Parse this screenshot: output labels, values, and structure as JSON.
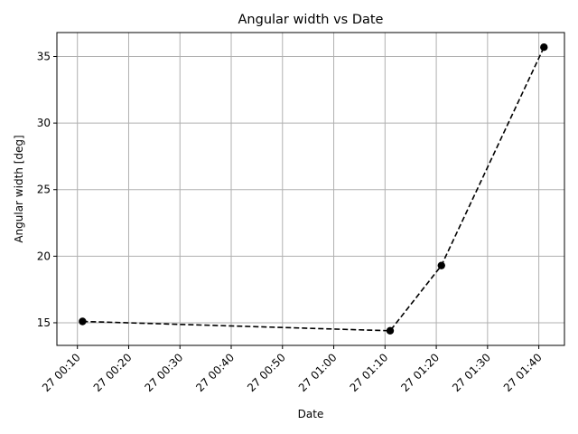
{
  "chart_data": {
    "type": "line",
    "title": "Angular width vs Date",
    "xlabel": "Date",
    "ylabel": "Angular width [deg]",
    "x_tick_labels": [
      "27 00:10",
      "27 00:20",
      "27 00:30",
      "27 00:40",
      "27 00:50",
      "27 01:00",
      "27 01:10",
      "27 01:20",
      "27 01:30",
      "27 01:40"
    ],
    "y_tick_labels": [
      "15",
      "20",
      "25",
      "30",
      "35"
    ],
    "y_ticks": [
      15,
      20,
      25,
      30,
      35
    ],
    "x_ticks": [
      "00:10",
      "00:20",
      "00:30",
      "00:40",
      "00:50",
      "01:00",
      "01:10",
      "01:20",
      "01:30",
      "01:40"
    ],
    "xlim": [
      "00:06",
      "01:45"
    ],
    "ylim": [
      13.3,
      36.8
    ],
    "grid": true,
    "line_style": "dashed",
    "marker": "circle",
    "series": [
      {
        "color": "#000000",
        "points": [
          {
            "x": "00:11",
            "y": 15.1
          },
          {
            "x": "01:11",
            "y": 14.4
          },
          {
            "x": "01:21",
            "y": 19.3
          },
          {
            "x": "01:41",
            "y": 35.7
          }
        ]
      }
    ],
    "colors": {
      "grid": "#b0b0b0",
      "axis": "#000000",
      "line": "#000000"
    }
  }
}
